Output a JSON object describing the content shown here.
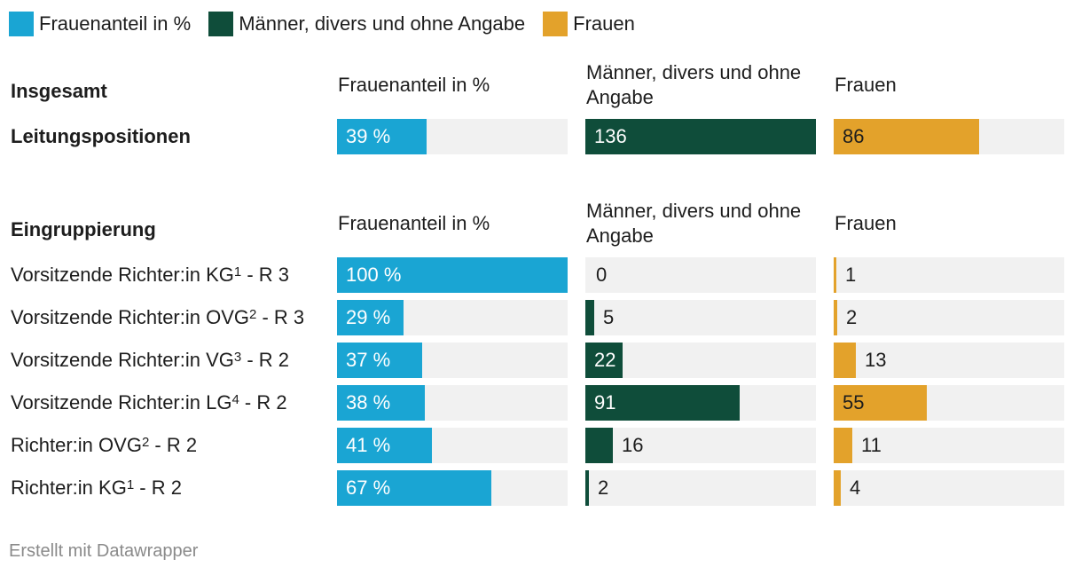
{
  "legend": [
    {
      "label": "Frauenanteil in %",
      "color": "#1aa5d3"
    },
    {
      "label": "Männer, divers und ohne Angabe",
      "color": "#0f4d3a"
    },
    {
      "label": "Frauen",
      "color": "#e3a22b"
    }
  ],
  "colors": {
    "pct": "#1aa5d3",
    "men": "#0f4d3a",
    "women": "#e3a22b",
    "track": "#f1f1f1"
  },
  "chart_data": {
    "type": "table",
    "columns": [
      "Frauenanteil in %",
      "Männer, divers und ohne Angabe",
      "Frauen"
    ],
    "scales": {
      "pct_max": 100,
      "men_max": 136,
      "women_max": 136
    },
    "sections": [
      {
        "title": "Insgesamt",
        "rows": [
          {
            "name": "Leitungspositionen",
            "sup": "",
            "suffix": "",
            "pct": 39,
            "pct_label": "39 %",
            "men": 136,
            "men_label": "136",
            "women": 86,
            "women_label": "86"
          }
        ]
      },
      {
        "title": "Eingruppierung",
        "rows": [
          {
            "name": "Vorsitzende Richter:in KG",
            "sup": "1",
            "suffix": " - R 3",
            "pct": 100,
            "pct_label": "100 %",
            "men": 0,
            "men_label": "0",
            "women": 1,
            "women_label": "1"
          },
          {
            "name": "Vorsitzende Richter:in OVG",
            "sup": "2",
            "suffix": " - R 3",
            "pct": 29,
            "pct_label": "29 %",
            "men": 5,
            "men_label": "5",
            "women": 2,
            "women_label": "2"
          },
          {
            "name": "Vorsitzende Richter:in VG",
            "sup": "3",
            "suffix": " - R 2",
            "pct": 37,
            "pct_label": "37 %",
            "men": 22,
            "men_label": "22",
            "women": 13,
            "women_label": "13"
          },
          {
            "name": "Vorsitzende Richter:in LG",
            "sup": "4",
            "suffix": " - R 2",
            "pct": 38,
            "pct_label": "38 %",
            "men": 91,
            "men_label": "91",
            "women": 55,
            "women_label": "55"
          },
          {
            "name": "Richter:in OVG",
            "sup": "2",
            "suffix": " - R 2",
            "pct": 41,
            "pct_label": "41 %",
            "men": 16,
            "men_label": "16",
            "women": 11,
            "women_label": "11"
          },
          {
            "name": "Richter:in KG",
            "sup": "1",
            "suffix": " - R 2",
            "pct": 67,
            "pct_label": "67 %",
            "men": 2,
            "men_label": "2",
            "women": 4,
            "women_label": "4"
          }
        ]
      }
    ]
  },
  "header_labels": {
    "pct": "Frauenanteil in %",
    "men_line1": "Männer, divers und ohne",
    "men_line2": "Angabe",
    "women": "Frauen"
  },
  "footer": "Erstellt mit Datawrapper"
}
